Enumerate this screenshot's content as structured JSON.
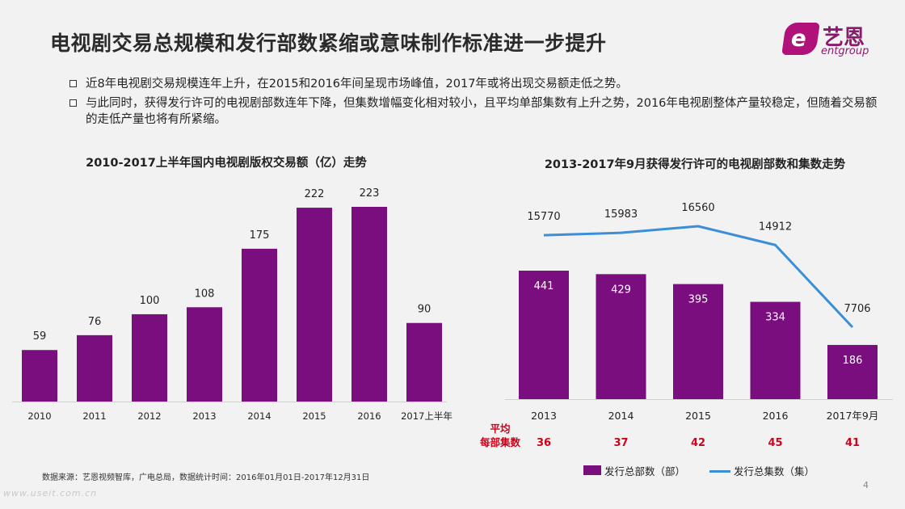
{
  "header": {
    "title": "电视剧交易总规模和发行部数紧缩或意味制作标准进一步提升",
    "logo_name": "艺恩",
    "logo_sub": "entgroup",
    "logo_mark": "e"
  },
  "bullets": [
    "近8年电视剧交易规模连年上升，在2015和2016年间呈现市场峰值，2017年或将出现交易额走低之势。",
    "与此同时，获得发行许可的电视剧部数连年下降，但集数增幅变化相对较小，且平均单部集数有上升之势，2016年电视剧整体产量较稳定，但随着交易额的走低产量也将有所紧缩。"
  ],
  "chart_data": [
    {
      "type": "bar",
      "title": "2010-2017上半年国内电视剧版权交易额（亿）走势",
      "categories": [
        "2010",
        "2011",
        "2012",
        "2013",
        "2014",
        "2015",
        "2016",
        "2017上半年"
      ],
      "values": [
        59,
        76,
        100,
        108,
        175,
        222,
        223,
        90
      ],
      "color": "#7b0e7e",
      "xlabel": "",
      "ylabel": "",
      "ylim": [
        0,
        250
      ]
    },
    {
      "type": "bar+line",
      "title": "2013-2017年9月获得发行许可的电视剧部数和集数走势",
      "categories": [
        "2013",
        "2014",
        "2015",
        "2016",
        "2017年9月"
      ],
      "series": [
        {
          "name": "发行总部数（部）",
          "type": "bar",
          "values": [
            441,
            429,
            395,
            334,
            186
          ],
          "color": "#7b0e7e"
        },
        {
          "name": "发行总集数（集）",
          "type": "line",
          "values": [
            15770,
            15983,
            16560,
            14912,
            7706
          ],
          "color": "#3a8fd8"
        }
      ],
      "avg_label": [
        "平均",
        "每部集数"
      ],
      "avg_episodes": [
        36,
        37,
        42,
        45,
        41
      ],
      "avg_color": "#d0021b"
    }
  ],
  "footer": {
    "source": "数据来源：艺恩视频智库，广电总局，数据统计时间：2016年01月01日-2017年12月31日",
    "page": "4",
    "watermark": "www.useit.com.cn"
  }
}
